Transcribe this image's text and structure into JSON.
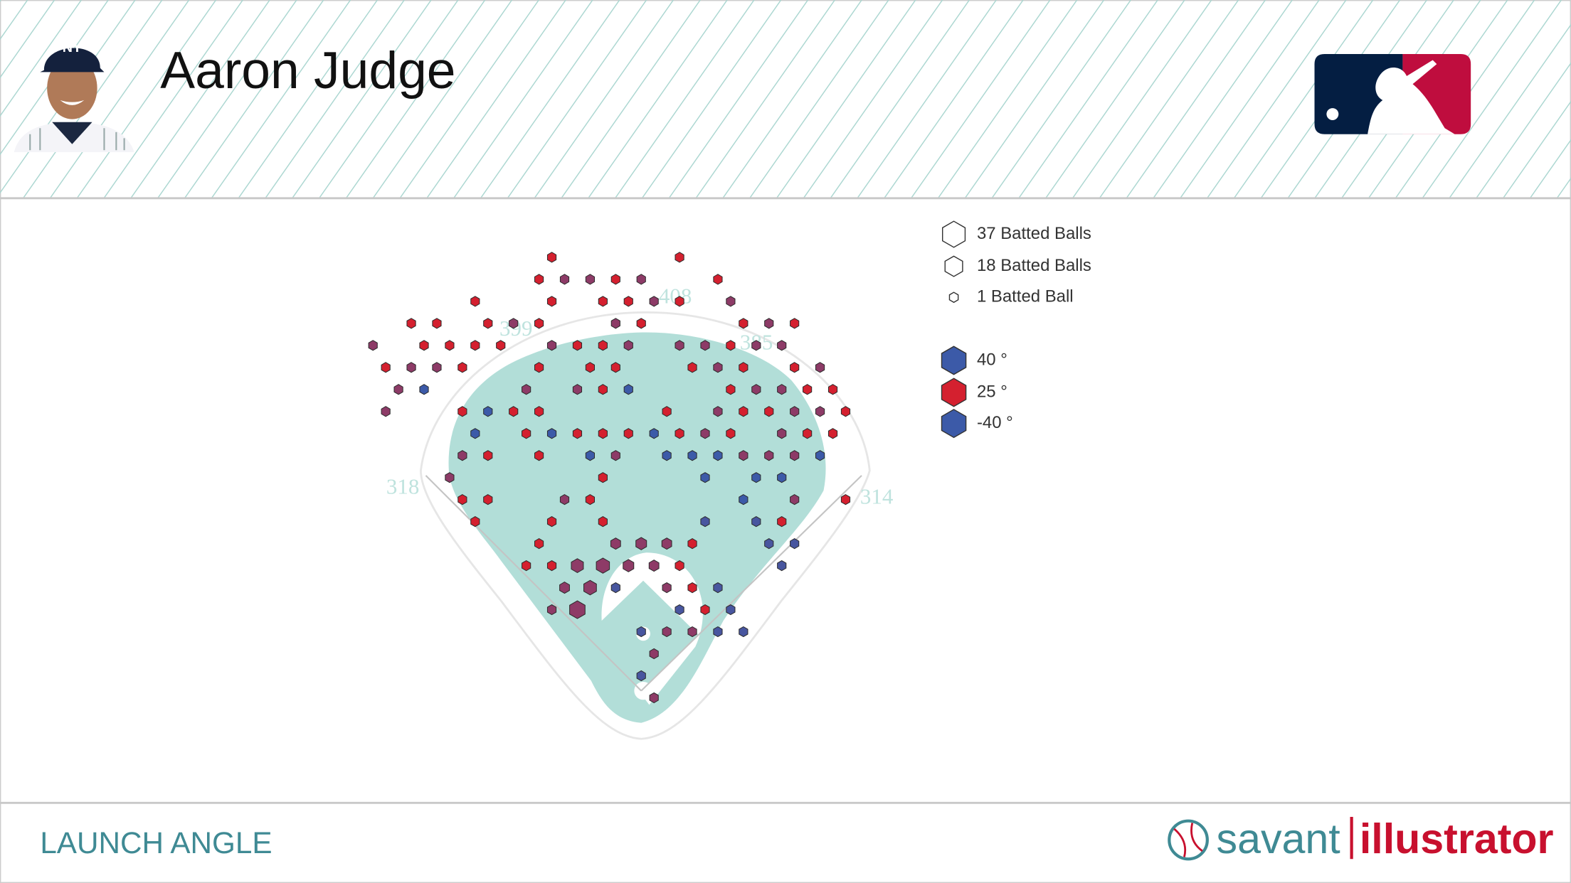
{
  "header": {
    "title": "Aaron Judge"
  },
  "footer": {
    "label": "LAUNCH ANGLE",
    "brand": [
      "savant",
      "illustrator"
    ]
  },
  "chart_data": {
    "type": "hexbin",
    "fence_distances": [
      318,
      399,
      408,
      385,
      314
    ],
    "size_legend": [
      {
        "count": 37,
        "label": "37 Batted Balls"
      },
      {
        "count": 18,
        "label": "18 Batted Balls"
      },
      {
        "count": 1,
        "label": "1 Batted Ball"
      }
    ],
    "color_legend": [
      {
        "value": 40,
        "label": "40 °",
        "color": "#3c5aa8"
      },
      {
        "value": 25,
        "label": "25 °",
        "color": "#d4202f"
      },
      {
        "value": -40,
        "label": "-40 °",
        "color": "#3c5aa8"
      }
    ],
    "hexes": [
      {
        "x": -105,
        "y": 500,
        "count": 1,
        "launch_angle": 25
      },
      {
        "x": 45,
        "y": 500,
        "count": 1,
        "launch_angle": 25
      },
      {
        "x": -120,
        "y": 475,
        "count": 1,
        "launch_angle": 25
      },
      {
        "x": -90,
        "y": 475,
        "count": 1,
        "launch_angle": 32
      },
      {
        "x": -60,
        "y": 475,
        "count": 1,
        "launch_angle": 32
      },
      {
        "x": -30,
        "y": 475,
        "count": 1,
        "launch_angle": 25
      },
      {
        "x": 0,
        "y": 475,
        "count": 1,
        "launch_angle": 32
      },
      {
        "x": 90,
        "y": 475,
        "count": 1,
        "launch_angle": 25
      },
      {
        "x": -195,
        "y": 450,
        "count": 1,
        "launch_angle": 25
      },
      {
        "x": -105,
        "y": 450,
        "count": 1,
        "launch_angle": 25
      },
      {
        "x": -45,
        "y": 450,
        "count": 1,
        "launch_angle": 25
      },
      {
        "x": -15,
        "y": 450,
        "count": 1,
        "launch_angle": 25
      },
      {
        "x": 15,
        "y": 450,
        "count": 1,
        "launch_angle": 32
      },
      {
        "x": 45,
        "y": 450,
        "count": 1,
        "launch_angle": 25
      },
      {
        "x": 105,
        "y": 450,
        "count": 1,
        "launch_angle": 32
      },
      {
        "x": -270,
        "y": 425,
        "count": 1,
        "launch_angle": 25
      },
      {
        "x": -240,
        "y": 425,
        "count": 1,
        "launch_angle": 25
      },
      {
        "x": -180,
        "y": 425,
        "count": 1,
        "launch_angle": 25
      },
      {
        "x": -150,
        "y": 425,
        "count": 1,
        "launch_angle": 32
      },
      {
        "x": -120,
        "y": 425,
        "count": 1,
        "launch_angle": 25
      },
      {
        "x": -30,
        "y": 425,
        "count": 1,
        "launch_angle": 32
      },
      {
        "x": 0,
        "y": 425,
        "count": 1,
        "launch_angle": 25
      },
      {
        "x": 120,
        "y": 425,
        "count": 1,
        "launch_angle": 25
      },
      {
        "x": 150,
        "y": 425,
        "count": 1,
        "launch_angle": 32
      },
      {
        "x": 180,
        "y": 425,
        "count": 1,
        "launch_angle": 25
      },
      {
        "x": -315,
        "y": 400,
        "count": 1,
        "launch_angle": 32
      },
      {
        "x": -255,
        "y": 400,
        "count": 1,
        "launch_angle": 25
      },
      {
        "x": -225,
        "y": 400,
        "count": 1,
        "launch_angle": 25
      },
      {
        "x": -195,
        "y": 400,
        "count": 1,
        "launch_angle": 25
      },
      {
        "x": -165,
        "y": 400,
        "count": 1,
        "launch_angle": 25
      },
      {
        "x": -105,
        "y": 400,
        "count": 1,
        "launch_angle": 32
      },
      {
        "x": -75,
        "y": 400,
        "count": 1,
        "launch_angle": 25
      },
      {
        "x": -45,
        "y": 400,
        "count": 1,
        "launch_angle": 25
      },
      {
        "x": -15,
        "y": 400,
        "count": 1,
        "launch_angle": 32
      },
      {
        "x": 45,
        "y": 400,
        "count": 1,
        "launch_angle": 32
      },
      {
        "x": 75,
        "y": 400,
        "count": 1,
        "launch_angle": 32
      },
      {
        "x": 105,
        "y": 400,
        "count": 1,
        "launch_angle": 25
      },
      {
        "x": 135,
        "y": 400,
        "count": 1,
        "launch_angle": 32
      },
      {
        "x": 165,
        "y": 400,
        "count": 1,
        "launch_angle": 32
      },
      {
        "x": -300,
        "y": 375,
        "count": 1,
        "launch_angle": 25
      },
      {
        "x": -270,
        "y": 375,
        "count": 1,
        "launch_angle": 32
      },
      {
        "x": -240,
        "y": 375,
        "count": 1,
        "launch_angle": 32
      },
      {
        "x": -210,
        "y": 375,
        "count": 1,
        "launch_angle": 25
      },
      {
        "x": -120,
        "y": 375,
        "count": 1,
        "launch_angle": 25
      },
      {
        "x": -60,
        "y": 375,
        "count": 1,
        "launch_angle": 25
      },
      {
        "x": -30,
        "y": 375,
        "count": 1,
        "launch_angle": 25
      },
      {
        "x": 60,
        "y": 375,
        "count": 1,
        "launch_angle": 25
      },
      {
        "x": 90,
        "y": 375,
        "count": 1,
        "launch_angle": 32
      },
      {
        "x": 120,
        "y": 375,
        "count": 1,
        "launch_angle": 25
      },
      {
        "x": 180,
        "y": 375,
        "count": 1,
        "launch_angle": 25
      },
      {
        "x": 210,
        "y": 375,
        "count": 1,
        "launch_angle": 32
      },
      {
        "x": -285,
        "y": 350,
        "count": 1,
        "launch_angle": 32
      },
      {
        "x": -255,
        "y": 350,
        "count": 1,
        "launch_angle": 40
      },
      {
        "x": -135,
        "y": 350,
        "count": 1,
        "launch_angle": 32
      },
      {
        "x": -75,
        "y": 350,
        "count": 1,
        "launch_angle": 32
      },
      {
        "x": -45,
        "y": 350,
        "count": 1,
        "launch_angle": 25
      },
      {
        "x": -15,
        "y": 350,
        "count": 1,
        "launch_angle": 40
      },
      {
        "x": 105,
        "y": 350,
        "count": 1,
        "launch_angle": 25
      },
      {
        "x": 135,
        "y": 350,
        "count": 1,
        "launch_angle": 32
      },
      {
        "x": 165,
        "y": 350,
        "count": 1,
        "launch_angle": 32
      },
      {
        "x": 195,
        "y": 350,
        "count": 1,
        "launch_angle": 25
      },
      {
        "x": 225,
        "y": 350,
        "count": 1,
        "launch_angle": 25
      },
      {
        "x": -300,
        "y": 325,
        "count": 1,
        "launch_angle": 32
      },
      {
        "x": -210,
        "y": 325,
        "count": 1,
        "launch_angle": 25
      },
      {
        "x": -180,
        "y": 325,
        "count": 1,
        "launch_angle": 40
      },
      {
        "x": -150,
        "y": 325,
        "count": 1,
        "launch_angle": 25
      },
      {
        "x": -120,
        "y": 325,
        "count": 1,
        "launch_angle": 25
      },
      {
        "x": 30,
        "y": 325,
        "count": 1,
        "launch_angle": 25
      },
      {
        "x": 90,
        "y": 325,
        "count": 1,
        "launch_angle": 32
      },
      {
        "x": 120,
        "y": 325,
        "count": 1,
        "launch_angle": 25
      },
      {
        "x": 150,
        "y": 325,
        "count": 1,
        "launch_angle": 25
      },
      {
        "x": 180,
        "y": 325,
        "count": 1,
        "launch_angle": 32
      },
      {
        "x": 210,
        "y": 325,
        "count": 1,
        "launch_angle": 32
      },
      {
        "x": 240,
        "y": 325,
        "count": 1,
        "launch_angle": 25
      },
      {
        "x": -195,
        "y": 300,
        "count": 1,
        "launch_angle": 40
      },
      {
        "x": -135,
        "y": 300,
        "count": 1,
        "launch_angle": 25
      },
      {
        "x": -105,
        "y": 300,
        "count": 1,
        "launch_angle": 40
      },
      {
        "x": -75,
        "y": 300,
        "count": 1,
        "launch_angle": 25
      },
      {
        "x": -45,
        "y": 300,
        "count": 1,
        "launch_angle": 25
      },
      {
        "x": -15,
        "y": 300,
        "count": 1,
        "launch_angle": 25
      },
      {
        "x": 15,
        "y": 300,
        "count": 1,
        "launch_angle": 40
      },
      {
        "x": 45,
        "y": 300,
        "count": 1,
        "launch_angle": 25
      },
      {
        "x": 75,
        "y": 300,
        "count": 1,
        "launch_angle": 32
      },
      {
        "x": 105,
        "y": 300,
        "count": 1,
        "launch_angle": 25
      },
      {
        "x": 165,
        "y": 300,
        "count": 1,
        "launch_angle": 32
      },
      {
        "x": 195,
        "y": 300,
        "count": 1,
        "launch_angle": 25
      },
      {
        "x": 225,
        "y": 300,
        "count": 1,
        "launch_angle": 25
      },
      {
        "x": -210,
        "y": 275,
        "count": 1,
        "launch_angle": 32
      },
      {
        "x": -180,
        "y": 275,
        "count": 1,
        "launch_angle": 25
      },
      {
        "x": -120,
        "y": 275,
        "count": 1,
        "launch_angle": 25
      },
      {
        "x": -60,
        "y": 275,
        "count": 1,
        "launch_angle": 40
      },
      {
        "x": -30,
        "y": 275,
        "count": 1,
        "launch_angle": 32
      },
      {
        "x": 30,
        "y": 275,
        "count": 1,
        "launch_angle": 40
      },
      {
        "x": 60,
        "y": 275,
        "count": 1,
        "launch_angle": 40
      },
      {
        "x": 90,
        "y": 275,
        "count": 1,
        "launch_angle": 40
      },
      {
        "x": 120,
        "y": 275,
        "count": 1,
        "launch_angle": 32
      },
      {
        "x": 150,
        "y": 275,
        "count": 1,
        "launch_angle": 32
      },
      {
        "x": 180,
        "y": 275,
        "count": 1,
        "launch_angle": 32
      },
      {
        "x": 210,
        "y": 275,
        "count": 1,
        "launch_angle": 40
      },
      {
        "x": -225,
        "y": 250,
        "count": 1,
        "launch_angle": 32
      },
      {
        "x": -45,
        "y": 250,
        "count": 1,
        "launch_angle": 25
      },
      {
        "x": 75,
        "y": 250,
        "count": 1,
        "launch_angle": 40
      },
      {
        "x": 135,
        "y": 250,
        "count": 1,
        "launch_angle": 40
      },
      {
        "x": 165,
        "y": 250,
        "count": 1,
        "launch_angle": 40
      },
      {
        "x": -210,
        "y": 225,
        "count": 1,
        "launch_angle": 25
      },
      {
        "x": -180,
        "y": 225,
        "count": 1,
        "launch_angle": 25
      },
      {
        "x": -90,
        "y": 225,
        "count": 1,
        "launch_angle": 32
      },
      {
        "x": -60,
        "y": 225,
        "count": 1,
        "launch_angle": 25
      },
      {
        "x": 120,
        "y": 225,
        "count": 1,
        "launch_angle": 40
      },
      {
        "x": 180,
        "y": 225,
        "count": 1,
        "launch_angle": 32
      },
      {
        "x": 240,
        "y": 225,
        "count": 1,
        "launch_angle": 25
      },
      {
        "x": -195,
        "y": 200,
        "count": 1,
        "launch_angle": 25
      },
      {
        "x": -105,
        "y": 200,
        "count": 1,
        "launch_angle": 25
      },
      {
        "x": -45,
        "y": 200,
        "count": 1,
        "launch_angle": 25
      },
      {
        "x": 75,
        "y": 200,
        "count": 1,
        "launch_angle": -35
      },
      {
        "x": 135,
        "y": 200,
        "count": 1,
        "launch_angle": -35
      },
      {
        "x": 165,
        "y": 200,
        "count": 1,
        "launch_angle": 25
      },
      {
        "x": -120,
        "y": 175,
        "count": 1,
        "launch_angle": 25
      },
      {
        "x": -30,
        "y": 175,
        "count": 2,
        "launch_angle": -5
      },
      {
        "x": 0,
        "y": 175,
        "count": 3,
        "launch_angle": -5
      },
      {
        "x": 30,
        "y": 175,
        "count": 2,
        "launch_angle": -5
      },
      {
        "x": 60,
        "y": 175,
        "count": 1,
        "launch_angle": 25
      },
      {
        "x": 150,
        "y": 175,
        "count": 1,
        "launch_angle": -35
      },
      {
        "x": 180,
        "y": 175,
        "count": 1,
        "launch_angle": -35
      },
      {
        "x": -135,
        "y": 150,
        "count": 1,
        "launch_angle": 25
      },
      {
        "x": -105,
        "y": 150,
        "count": 1,
        "launch_angle": 25
      },
      {
        "x": -75,
        "y": 150,
        "count": 5,
        "launch_angle": -5
      },
      {
        "x": -45,
        "y": 150,
        "count": 7,
        "launch_angle": -5
      },
      {
        "x": -15,
        "y": 150,
        "count": 3,
        "launch_angle": -5
      },
      {
        "x": 15,
        "y": 150,
        "count": 2,
        "launch_angle": -5
      },
      {
        "x": 45,
        "y": 150,
        "count": 1,
        "launch_angle": 25
      },
      {
        "x": 165,
        "y": 150,
        "count": 1,
        "launch_angle": -35
      },
      {
        "x": -90,
        "y": 125,
        "count": 2,
        "launch_angle": -5
      },
      {
        "x": -60,
        "y": 125,
        "count": 6,
        "launch_angle": -5
      },
      {
        "x": -30,
        "y": 125,
        "count": 1,
        "launch_angle": -35
      },
      {
        "x": 30,
        "y": 125,
        "count": 1,
        "launch_angle": -5
      },
      {
        "x": 60,
        "y": 125,
        "count": 1,
        "launch_angle": 25
      },
      {
        "x": 90,
        "y": 125,
        "count": 1,
        "launch_angle": -35
      },
      {
        "x": -105,
        "y": 100,
        "count": 1,
        "launch_angle": -5
      },
      {
        "x": -75,
        "y": 100,
        "count": 12,
        "launch_angle": -5
      },
      {
        "x": 45,
        "y": 100,
        "count": 1,
        "launch_angle": -35
      },
      {
        "x": 75,
        "y": 100,
        "count": 1,
        "launch_angle": 25
      },
      {
        "x": 105,
        "y": 100,
        "count": 1,
        "launch_angle": -35
      },
      {
        "x": 0,
        "y": 75,
        "count": 1,
        "launch_angle": -35
      },
      {
        "x": 30,
        "y": 75,
        "count": 1,
        "launch_angle": -5
      },
      {
        "x": 60,
        "y": 75,
        "count": 1,
        "launch_angle": -5
      },
      {
        "x": 90,
        "y": 75,
        "count": 1,
        "launch_angle": -35
      },
      {
        "x": 120,
        "y": 75,
        "count": 1,
        "launch_angle": -35
      },
      {
        "x": 15,
        "y": 50,
        "count": 1,
        "launch_angle": -5
      },
      {
        "x": 0,
        "y": 25,
        "count": 1,
        "launch_angle": -35
      },
      {
        "x": 15,
        "y": 0,
        "count": 1,
        "launch_angle": -5
      }
    ]
  }
}
